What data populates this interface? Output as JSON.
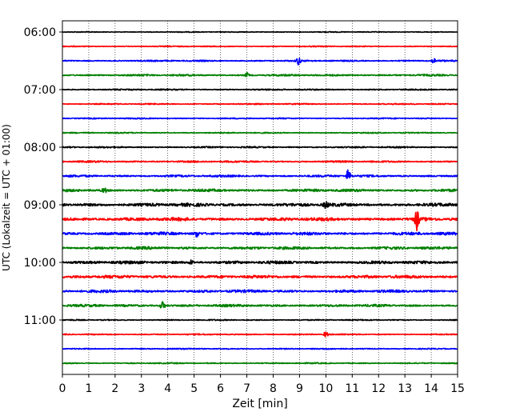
{
  "chart_data": {
    "type": "line",
    "title": "",
    "xlabel": "Zeit  [min]",
    "ylabel": "UTC (Lokalzeit = UTC + 01:00)",
    "xlim": [
      0,
      15
    ],
    "x_ticks": [
      "0",
      "1",
      "2",
      "3",
      "4",
      "5",
      "6",
      "7",
      "8",
      "9",
      "10",
      "11",
      "12",
      "13",
      "14",
      "15"
    ],
    "y_ticks": [
      {
        "label": "06:00",
        "trace_index": 0
      },
      {
        "label": "07:00",
        "trace_index": 4
      },
      {
        "label": "08:00",
        "trace_index": 8
      },
      {
        "label": "09:00",
        "trace_index": 12
      },
      {
        "label": "10:00",
        "trace_index": 16
      },
      {
        "label": "11:00",
        "trace_index": 20
      }
    ],
    "grid": "vertical-dotted",
    "series_colors": [
      "#000000",
      "#ff0000",
      "#0000ff",
      "#008000"
    ],
    "traces": [
      {
        "start": "06:00",
        "noise": 0.6,
        "events": []
      },
      {
        "start": "06:15",
        "noise": 0.7,
        "events": []
      },
      {
        "start": "06:30",
        "noise": 1.0,
        "events": [
          {
            "t": 8.95,
            "amp": 5
          },
          {
            "t": 14.1,
            "amp": 3
          }
        ]
      },
      {
        "start": "06:45",
        "noise": 1.2,
        "events": [
          {
            "t": 7.0,
            "amp": 3
          }
        ]
      },
      {
        "start": "07:00",
        "noise": 0.9,
        "events": []
      },
      {
        "start": "07:15",
        "noise": 0.8,
        "events": []
      },
      {
        "start": "07:30",
        "noise": 0.8,
        "events": []
      },
      {
        "start": "07:45",
        "noise": 0.8,
        "events": []
      },
      {
        "start": "08:00",
        "noise": 1.0,
        "events": []
      },
      {
        "start": "08:15",
        "noise": 1.2,
        "events": []
      },
      {
        "start": "08:30",
        "noise": 1.4,
        "events": [
          {
            "t": 10.85,
            "amp": 9
          }
        ]
      },
      {
        "start": "08:45",
        "noise": 1.8,
        "events": [
          {
            "t": 1.6,
            "amp": 3
          }
        ]
      },
      {
        "start": "09:00",
        "noise": 2.2,
        "events": [
          {
            "t": 10.0,
            "amp": 4
          }
        ]
      },
      {
        "start": "09:15",
        "noise": 2.2,
        "events": [
          {
            "t": 13.45,
            "amp": 14
          }
        ]
      },
      {
        "start": "09:30",
        "noise": 2.0,
        "events": [
          {
            "t": 5.1,
            "amp": 4
          }
        ]
      },
      {
        "start": "09:45",
        "noise": 1.8,
        "events": []
      },
      {
        "start": "10:00",
        "noise": 2.0,
        "events": [
          {
            "t": 4.9,
            "amp": 3
          }
        ]
      },
      {
        "start": "10:15",
        "noise": 2.0,
        "events": []
      },
      {
        "start": "10:30",
        "noise": 1.8,
        "events": []
      },
      {
        "start": "10:45",
        "noise": 1.6,
        "events": [
          {
            "t": 3.8,
            "amp": 6
          }
        ]
      },
      {
        "start": "11:00",
        "noise": 0.8,
        "events": []
      },
      {
        "start": "11:15",
        "noise": 0.8,
        "events": [
          {
            "t": 10.0,
            "amp": 4
          }
        ]
      },
      {
        "start": "11:30",
        "noise": 0.8,
        "events": []
      },
      {
        "start": "11:45",
        "noise": 0.8,
        "events": []
      }
    ]
  }
}
